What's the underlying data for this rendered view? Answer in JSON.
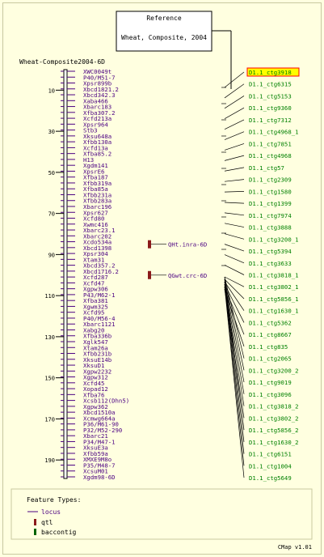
{
  "reference": {
    "title": "Reference",
    "subtitle": "Wheat, Composite, 2004"
  },
  "map_name": "Wheat-Composite2004-6D",
  "axis": {
    "ticks": [
      "10",
      "30",
      "50",
      "70",
      "90",
      "110",
      "130",
      "150",
      "170",
      "190"
    ],
    "tick_values": [
      10,
      30,
      50,
      70,
      90,
      110,
      130,
      150,
      170,
      190
    ],
    "range": [
      0,
      199
    ]
  },
  "markers": [
    "XWC0049t",
    "P40/M51-7",
    "Xpsr899b",
    "Xbcd1821.2",
    "Xbcd342.3",
    "Xaba466",
    "Xbarc183",
    "Xfba307.2",
    "Xcfd213a",
    "Xpsr964",
    "Stb3",
    "Xksu648a",
    "Xfbb130a",
    "Xcfd13a",
    "Xfba85.2",
    "H13",
    "Xgdm141",
    "XpsrE6",
    "Xfba187",
    "Xfbb319a",
    "Xfba85a",
    "Xfbb231a",
    "Xfbb283a",
    "Xbarc196",
    "Xpsr627",
    "Xcfd80",
    "Xwmc416",
    "Xbarc23.1",
    "Xbarc202",
    "Xcdo534a",
    "Xbcd1398",
    "Xpsr304",
    "Xtam31",
    "Xbcd357.2",
    "Xbcd1716.2",
    "Xcfd287",
    "Xcfd47",
    "Xgpw306",
    "P43/M62-1",
    "Xfba381",
    "Xgwm325",
    "Xcfd95",
    "P40/M56-4",
    "Xbarc1121",
    "Xabg20",
    "Xfba336b",
    "Xglk547",
    "Xtam26a",
    "Xfbb231b",
    "XksuE14b",
    "XksuD1",
    "Xgpw2232",
    "Xgpw312",
    "Xcfd45",
    "Xopad12",
    "Xfba76",
    "Xcsb112(Dhn5)",
    "Xgpw362",
    "Xbcd1510a",
    "Xcmwg664a",
    "P36/M61-90",
    "P32/M52-290",
    "Xbarc21",
    "P34/M47-1",
    "XksuE3a",
    "Xfbb59a",
    "XMXE9M8o",
    "P35/M48-7",
    "XcsuM01",
    "Xgdm98-6D"
  ],
  "qtls": [
    {
      "label": "QHt.inra-6D",
      "value": 85
    },
    {
      "label": "QGwt.crc-6D",
      "value": 100
    }
  ],
  "contigs": [
    "D1.1_ctg3918",
    "D1.1_ctg6315",
    "D1.1_ctg5153",
    "D1.1_ctg9360",
    "D1.1_ctg7312",
    "D1.1_ctg4968_1",
    "D1.1_ctg7851",
    "D1.1_ctg4968",
    "D1.1_ctg57",
    "D1.1_ctg2309",
    "D1.1_ctg1580",
    "D1.1_ctg1399",
    "D1.1_ctg7974",
    "D1.1_ctg3888",
    "D1.1_ctg3200_1",
    "D1.1_ctg5394",
    "D1.1_ctg3633",
    "D1.1_ctg3818_1",
    "D1.1_ctg3802_1",
    "D1.1_ctg5856_1",
    "D1.1_ctg1630_1",
    "D1.1_ctg5362",
    "D1.1_ctg8667",
    "D1.1_ctg835",
    "D1.1_ctg2065",
    "D1.1_ctg3200_2",
    "D1.1_ctg9019",
    "D1.1_ctg3096",
    "D1.1_ctg3818_2",
    "D1.1_ctg3802_2",
    "D1.1_ctg5856_2",
    "D1.1_ctg1630_2",
    "D1.1_ctg6151",
    "D1.1_ctg1004",
    "D1.1_ctg5649"
  ],
  "legend": {
    "title": "Feature Types:",
    "items": [
      "locus",
      "qtl",
      "baccontig"
    ]
  },
  "version": "CMap v1.01",
  "colors": {
    "background": "#ffffe0",
    "marker_text": "#4b0082",
    "contig_text": "#008000",
    "qtl": "#8b1a1a",
    "highlight": "#ffff00",
    "highlight_border": "#ff0000"
  }
}
